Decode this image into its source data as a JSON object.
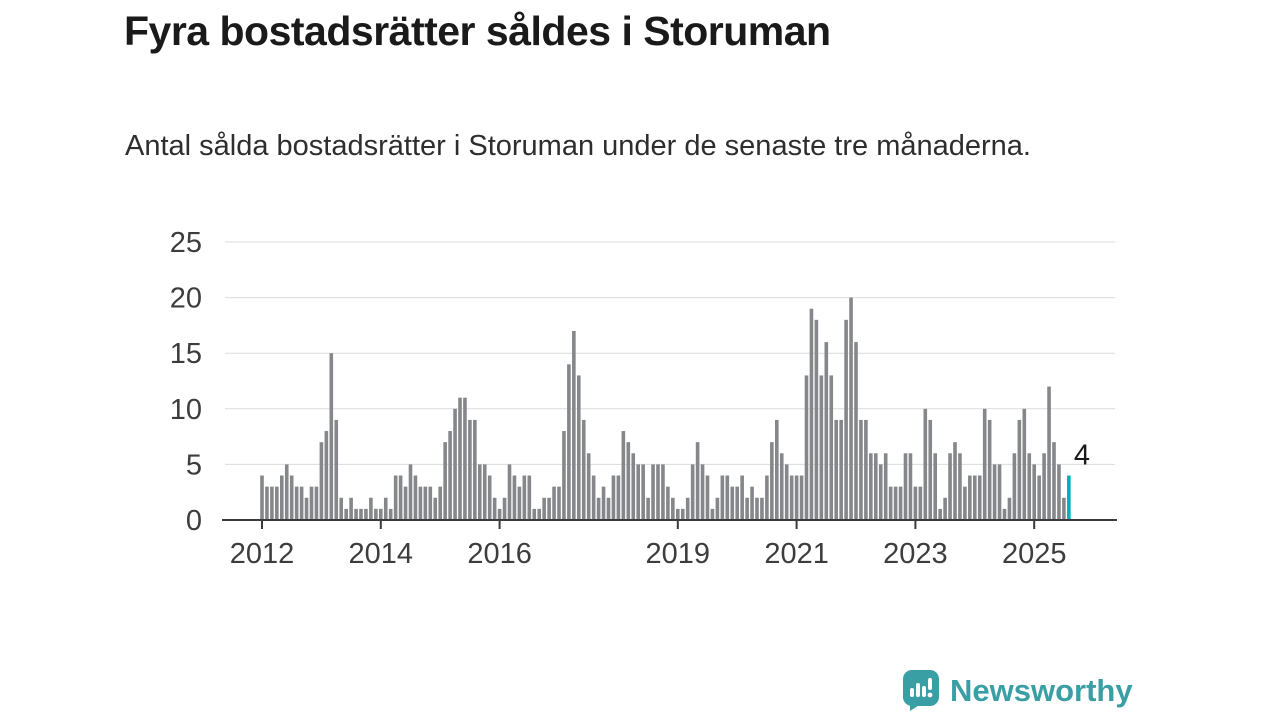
{
  "header": {
    "title": "Fyra bostadsrätter såldes i Storuman",
    "subtitle": "Antal sålda bostadsrätter i Storuman under de senaste tre månaderna."
  },
  "chart_data": {
    "type": "bar",
    "title": "Fyra bostadsrätter såldes i Storuman",
    "subtitle": "Antal sålda bostadsrätter i Storuman under de senaste tre månaderna.",
    "x_unit": "month",
    "x_start_year": 2012,
    "values": [
      4,
      3,
      3,
      3,
      4,
      5,
      4,
      3,
      3,
      2,
      3,
      3,
      7,
      8,
      15,
      9,
      2,
      1,
      2,
      1,
      1,
      1,
      2,
      1,
      1,
      2,
      1,
      4,
      4,
      3,
      5,
      4,
      3,
      3,
      3,
      2,
      3,
      7,
      8,
      10,
      11,
      11,
      9,
      9,
      5,
      5,
      4,
      2,
      1,
      2,
      5,
      4,
      3,
      4,
      4,
      1,
      1,
      2,
      2,
      3,
      3,
      8,
      14,
      17,
      13,
      9,
      6,
      4,
      2,
      3,
      2,
      4,
      4,
      8,
      7,
      6,
      5,
      5,
      2,
      5,
      5,
      5,
      3,
      2,
      1,
      1,
      2,
      5,
      7,
      5,
      4,
      1,
      2,
      4,
      4,
      3,
      3,
      4,
      2,
      3,
      2,
      2,
      4,
      7,
      9,
      6,
      5,
      4,
      4,
      4,
      13,
      19,
      18,
      13,
      16,
      13,
      9,
      9,
      18,
      20,
      16,
      9,
      9,
      6,
      6,
      5,
      6,
      3,
      3,
      3,
      6,
      6,
      3,
      3,
      10,
      9,
      6,
      1,
      2,
      6,
      7,
      6,
      3,
      4,
      4,
      4,
      10,
      9,
      5,
      5,
      1,
      2,
      6,
      9,
      10,
      6,
      5,
      4,
      6,
      12,
      7,
      5,
      2,
      4
    ],
    "yticks": [
      0,
      5,
      10,
      15,
      20,
      25
    ],
    "xticks": [
      2012,
      2014,
      2016,
      2019,
      2021,
      2023,
      2025
    ],
    "ylim": [
      0,
      25
    ],
    "grid": true,
    "legend": "none",
    "bar_color": "#85878A",
    "highlight_color": "#00AFBA",
    "last_value_label": "4"
  },
  "branding": {
    "logo_text": "Newsworthy",
    "logo_color": "#3A9FA4",
    "logo_icon": "bar-chart-bubble-icon"
  }
}
